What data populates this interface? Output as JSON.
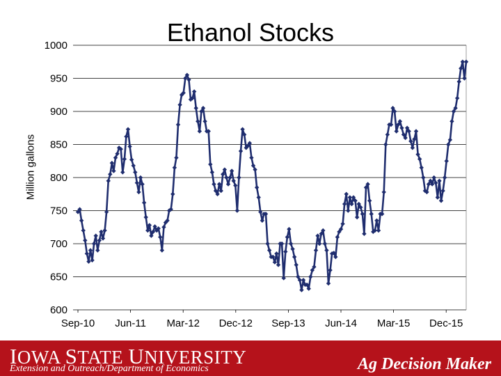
{
  "chart_data": {
    "type": "line",
    "title": "Ethanol Stocks",
    "ylabel": "Million gallons",
    "xlabel": "",
    "ylim": [
      600,
      1000
    ],
    "yticks": [
      600,
      650,
      700,
      750,
      800,
      850,
      900,
      950,
      1000
    ],
    "xticks": [
      "Sep-10",
      "Jun-11",
      "Mar-12",
      "Dec-12",
      "Sep-13",
      "Jun-14",
      "Mar-15",
      "Dec-15"
    ],
    "grid": true,
    "series": [
      {
        "color": "#1f2d6e",
        "values": [
          748,
          752,
          735,
          720,
          705,
          685,
          673,
          690,
          675,
          700,
          712,
          690,
          705,
          718,
          708,
          720,
          748,
          795,
          805,
          822,
          810,
          830,
          836,
          845,
          843,
          808,
          828,
          862,
          873,
          847,
          827,
          818,
          808,
          792,
          778,
          800,
          790,
          762,
          740,
          720,
          728,
          712,
          718,
          726,
          720,
          723,
          710,
          690,
          725,
          732,
          735,
          750,
          752,
          775,
          815,
          830,
          880,
          910,
          925,
          928,
          950,
          955,
          948,
          918,
          920,
          930,
          905,
          885,
          870,
          900,
          905,
          885,
          870,
          870,
          820,
          808,
          790,
          780,
          775,
          790,
          780,
          805,
          812,
          800,
          790,
          800,
          810,
          795,
          788,
          750,
          800,
          840,
          873,
          865,
          845,
          848,
          852,
          830,
          818,
          812,
          785,
          770,
          748,
          735,
          745,
          745,
          700,
          690,
          680,
          680,
          672,
          685,
          668,
          700,
          700,
          648,
          688,
          710,
          722,
          700,
          692,
          680,
          668,
          650,
          645,
          630,
          645,
          638,
          638,
          632,
          650,
          660,
          665,
          690,
          712,
          700,
          715,
          720,
          700,
          690,
          640,
          660,
          685,
          686,
          680,
          710,
          718,
          722,
          730,
          760,
          775,
          750,
          770,
          760,
          770,
          765,
          740,
          760,
          755,
          745,
          715,
          785,
          790,
          765,
          745,
          718,
          720,
          735,
          720,
          745,
          745,
          778,
          850,
          865,
          880,
          880,
          905,
          900,
          870,
          880,
          885,
          875,
          865,
          860,
          875,
          870,
          855,
          845,
          858,
          870,
          835,
          828,
          815,
          800,
          780,
          778,
          790,
          795,
          790,
          800,
          792,
          770,
          795,
          765,
          780,
          800,
          825,
          850,
          857,
          885,
          900,
          905,
          920,
          945,
          965,
          975,
          950,
          975
        ]
      }
    ]
  },
  "footer": {
    "university_first": "I",
    "university_rest": "OWA ",
    "state_first": "S",
    "state_rest": "TATE ",
    "univ_first": "U",
    "univ_rest": "NIVERSITY",
    "subtitle": "Extension and Outreach/Department of Economics",
    "brand": "Ag Decision Maker"
  }
}
